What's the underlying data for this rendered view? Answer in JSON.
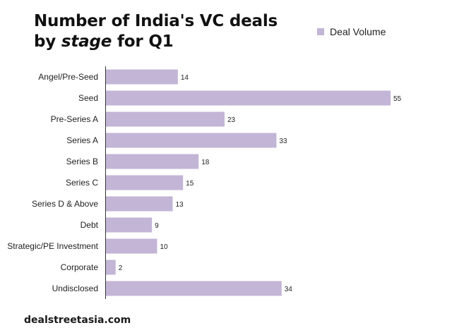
{
  "colors": {
    "bar": "#c3b5d6",
    "axis": "#333333",
    "text": "#222222"
  },
  "chart_data": {
    "type": "bar",
    "orientation": "horizontal",
    "title_parts": [
      "Number of India's VC deals",
      "by ",
      "stage",
      " for Q1"
    ],
    "categories": [
      "Angel/Pre-Seed",
      "Seed",
      "Pre-Series A",
      "Series A",
      "Series B",
      "Series C",
      "Series D & Above",
      "Debt",
      "Strategic/PE Investment",
      "Corporate",
      "Undisclosed"
    ],
    "series": [
      {
        "name": "Deal Volume",
        "values": [
          14,
          55,
          23,
          33,
          18,
          15,
          13,
          9,
          10,
          2,
          34
        ]
      }
    ],
    "xlim": [
      0,
      55
    ],
    "grid": false,
    "legend": "top-right",
    "data_labels": true
  },
  "source": "dealstreetasia.com"
}
